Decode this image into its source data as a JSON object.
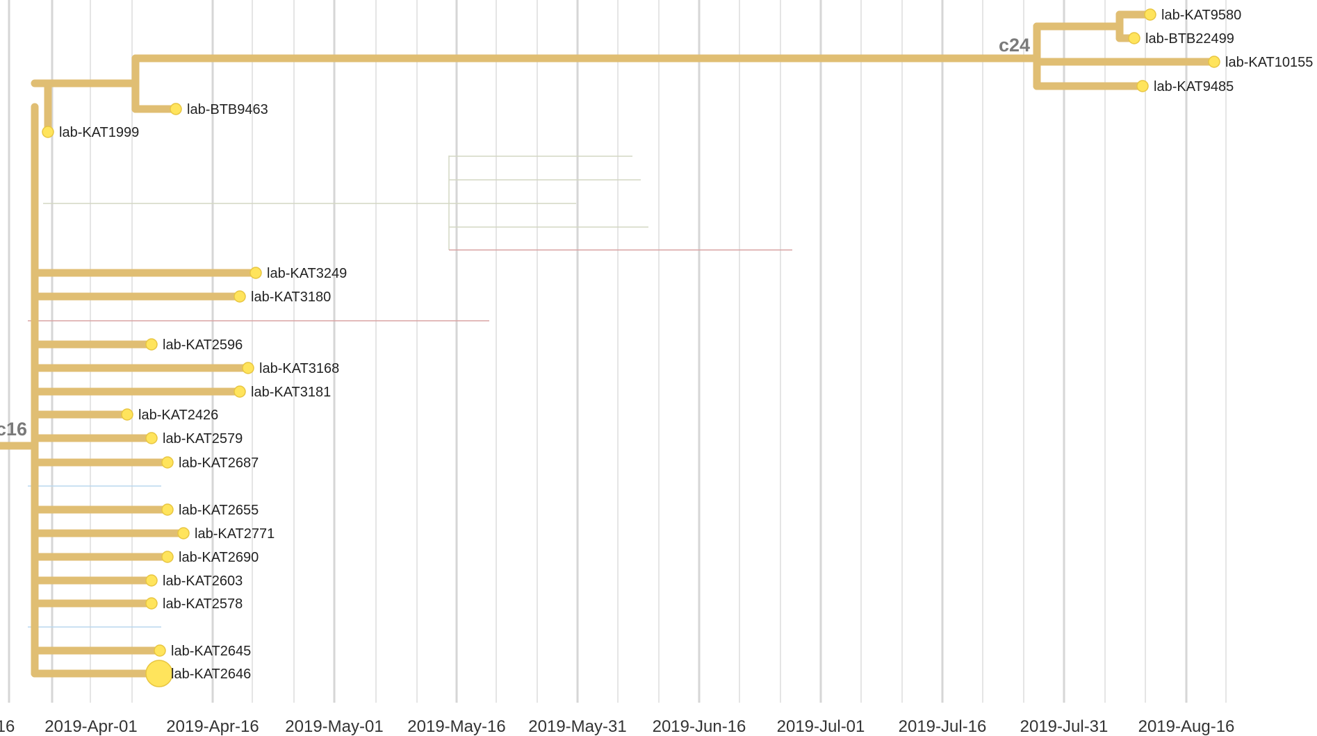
{
  "colors": {
    "branch": "#E0BE73",
    "tip_fill": "#FFE45C",
    "tip_stroke": "#E8C541",
    "grid_major": "#D6D6D6",
    "grid_minor": "#E5E5E5",
    "faded_gray": "#D3D7C3",
    "faded_red": "#D9A3A3",
    "faded_blue": "#B9D7EE",
    "axis_text": "#333333",
    "clade_text": "#7a7a7a"
  },
  "axis": {
    "ticks": [
      {
        "label": "16"
      },
      {
        "label": "2019-Apr-01"
      },
      {
        "label": "2019-Apr-16"
      },
      {
        "label": "2019-May-01"
      },
      {
        "label": "2019-May-16"
      },
      {
        "label": "2019-May-31"
      },
      {
        "label": "2019-Jun-16"
      },
      {
        "label": "2019-Jul-01"
      },
      {
        "label": "2019-Jul-16"
      },
      {
        "label": "2019-Jul-31"
      },
      {
        "label": "2019-Aug-16"
      }
    ]
  },
  "clades": [
    {
      "label": "c16"
    },
    {
      "label": "c24"
    }
  ],
  "tips": [
    {
      "label": "lab-KAT9580"
    },
    {
      "label": "lab-BTB22499"
    },
    {
      "label": "lab-KAT10155"
    },
    {
      "label": "lab-KAT9485"
    },
    {
      "label": "lab-BTB9463"
    },
    {
      "label": "lab-KAT1999"
    },
    {
      "label": "lab-KAT3249"
    },
    {
      "label": "lab-KAT3180"
    },
    {
      "label": "lab-KAT2596"
    },
    {
      "label": "lab-KAT3168"
    },
    {
      "label": "lab-KAT3181"
    },
    {
      "label": "lab-KAT2426"
    },
    {
      "label": "lab-KAT2579"
    },
    {
      "label": "lab-KAT2687"
    },
    {
      "label": "lab-KAT2655"
    },
    {
      "label": "lab-KAT2771"
    },
    {
      "label": "lab-KAT2690"
    },
    {
      "label": "lab-KAT2603"
    },
    {
      "label": "lab-KAT2578"
    },
    {
      "label": "lab-KAT2645"
    },
    {
      "label": "lab-KAT2646"
    }
  ]
}
